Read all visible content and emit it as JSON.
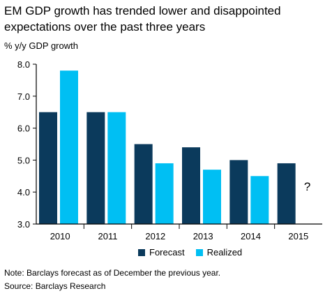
{
  "chart_data": {
    "type": "bar",
    "title_line1": "EM GDP growth has trended lower and disappointed",
    "title_line2": "expectations over the past three years",
    "ylabel": "% y/y GDP growth",
    "categories": [
      "2010",
      "2011",
      "2012",
      "2013",
      "2014",
      "2015"
    ],
    "series": [
      {
        "name": "Forecast",
        "color": "#0b3a5c",
        "values": [
          6.5,
          6.5,
          5.5,
          5.4,
          5.0,
          4.9
        ]
      },
      {
        "name": "Realized",
        "color": "#00bff3",
        "values": [
          7.8,
          6.5,
          4.9,
          4.7,
          4.5,
          null
        ]
      }
    ],
    "missing_marker": "?",
    "ylim": [
      3.0,
      8.0
    ],
    "yticks": [
      "3.0",
      "4.0",
      "5.0",
      "6.0",
      "7.0",
      "8.0"
    ],
    "grid": false,
    "legend_position": "bottom"
  },
  "notes": {
    "line1": "Note: Barclays forecast as of December the previous year.",
    "line2": "Source: Barclays Research"
  }
}
